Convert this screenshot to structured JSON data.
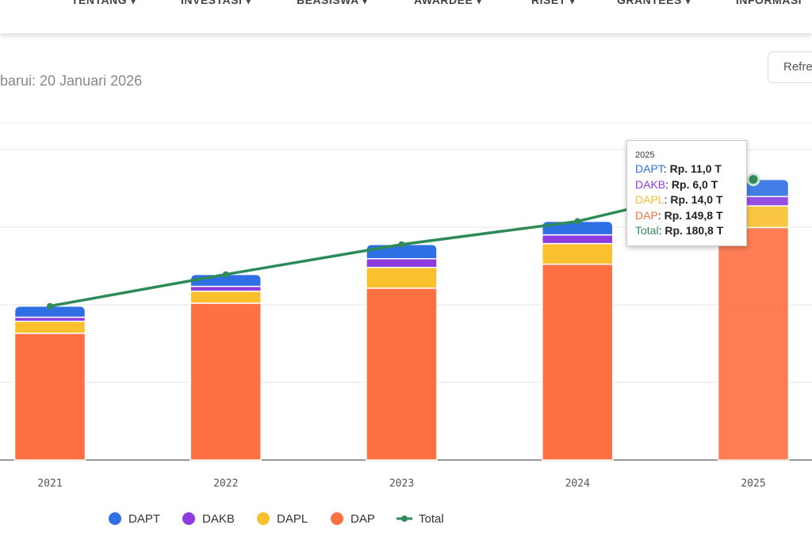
{
  "nav": [
    "TENTANG",
    "INVESTASI",
    "BEASISWA",
    "AWARDEE",
    "RISET",
    "GRANTEES",
    "INFORMASI"
  ],
  "updated": "barui: 20 Januari 2026",
  "refresh_button": "Refre",
  "chart_data": {
    "type": "bar",
    "stacked": true,
    "categories": [
      "2021",
      "2022",
      "2023",
      "2024",
      "2025"
    ],
    "series": [
      {
        "name": "DAPT",
        "color": "#2f6fe4",
        "values": [
          7.2,
          7.7,
          9.2,
          8.7,
          11.0
        ]
      },
      {
        "name": "DAKB",
        "color": "#8e3be0",
        "values": [
          2.6,
          3.1,
          5.6,
          5.6,
          6.0
        ]
      },
      {
        "name": "DAPL",
        "color": "#fbc02d",
        "values": [
          7.7,
          7.7,
          13.3,
          13.3,
          14.0
        ]
      },
      {
        "name": "DAP",
        "color": "#ff7043",
        "values": [
          81.7,
          101.1,
          110.8,
          126.2,
          149.8
        ]
      },
      {
        "name": "Total",
        "type": "line",
        "color": "#2e8b57",
        "values": [
          99.2,
          119.6,
          138.9,
          153.8,
          180.8
        ]
      }
    ],
    "ylim": [
      0,
      200
    ],
    "yticks": [
      0,
      50,
      100,
      150,
      200
    ],
    "grid": true,
    "tooltip": {
      "title": "2025",
      "labels": [
        "Rp. 11,0 T",
        "Rp. 6,0 T",
        "Rp. 14,0 T",
        "Rp. 149,8 T",
        "Rp. 180,8 T"
      ]
    }
  }
}
